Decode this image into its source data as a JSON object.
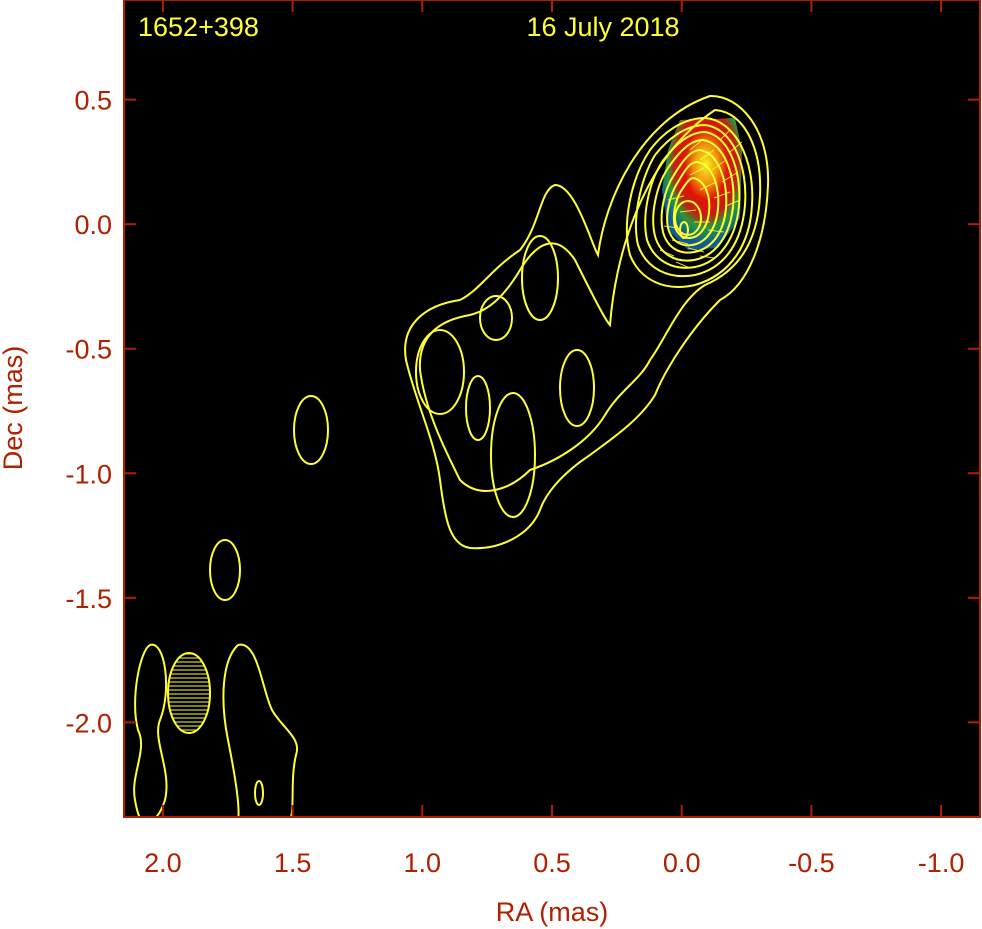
{
  "chart_data": {
    "type": "contour",
    "source_name": "1652+398",
    "epoch": "16 July 2018",
    "xlabel": "RA (mas)",
    "ylabel": "Dec (mas)",
    "xlim": [
      2.15,
      -1.15
    ],
    "ylim": [
      -2.38,
      0.9
    ],
    "x_ticks": [
      2.0,
      1.5,
      1.0,
      0.5,
      0.0,
      -0.5,
      -1.0
    ],
    "x_tick_labels": [
      "2.0",
      "1.5",
      "1.0",
      "0.5",
      "0.0",
      "-0.5",
      "-1.0"
    ],
    "y_ticks": [
      0.5,
      0.0,
      -0.5,
      -1.0,
      -1.5,
      -2.0
    ],
    "y_tick_labels": [
      "0.5",
      "0.0",
      "-0.5",
      "-1.0",
      "-1.5",
      "-2.0"
    ],
    "colors": {
      "background": "#000000",
      "contour": "#ffff33",
      "axis_text": "#b02000",
      "panel_text": "#ffff33",
      "frame": "#b02000"
    },
    "core_position": [
      0.0,
      0.0
    ],
    "peak_polarized_intensity_position": [
      -0.12,
      0.22
    ],
    "contour_levels": 11,
    "beam": {
      "center": [
        1.9,
        -1.87
      ],
      "major_axis_mas": 0.31,
      "minor_axis_mas": 0.17,
      "position_angle_deg": 5
    }
  }
}
